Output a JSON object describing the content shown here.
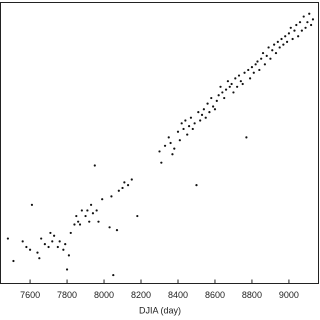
{
  "chart_data": {
    "type": "scatter",
    "xlabel": "DJIA (day)",
    "color": "#111111",
    "xlim": [
      7440,
      9160
    ],
    "ylim": [
      0,
      100
    ],
    "xticks": [
      7600,
      7800,
      8000,
      8200,
      8400,
      8600,
      8800,
      9000
    ],
    "x": [
      7480,
      7510,
      7560,
      7580,
      7600,
      7610,
      7640,
      7650,
      7660,
      7680,
      7700,
      7710,
      7720,
      7730,
      7750,
      7760,
      7780,
      7790,
      7800,
      7810,
      7820,
      7840,
      7850,
      7860,
      7870,
      7880,
      7900,
      7910,
      7920,
      7930,
      7940,
      7950,
      7960,
      7970,
      7990,
      8030,
      8040,
      8050,
      8070,
      8080,
      8100,
      8110,
      8130,
      8150,
      8180,
      8300,
      8310,
      8330,
      8350,
      8360,
      8370,
      8380,
      8400,
      8410,
      8420,
      8430,
      8440,
      8450,
      8460,
      8470,
      8480,
      8490,
      8500,
      8510,
      8520,
      8530,
      8540,
      8550,
      8560,
      8570,
      8580,
      8590,
      8600,
      8610,
      8620,
      8630,
      8640,
      8650,
      8660,
      8670,
      8680,
      8690,
      8700,
      8710,
      8720,
      8730,
      8740,
      8750,
      8760,
      8770,
      8780,
      8790,
      8800,
      8810,
      8820,
      8830,
      8840,
      8850,
      8860,
      8870,
      8880,
      8890,
      8900,
      8910,
      8920,
      8930,
      8940,
      8950,
      8960,
      8970,
      8980,
      8990,
      9000,
      9010,
      9020,
      9030,
      9040,
      9050,
      9060,
      9070,
      9080,
      9090,
      9100,
      9110,
      9120,
      9130
    ],
    "values": [
      16,
      8,
      15,
      13,
      12,
      28,
      11,
      9,
      16,
      14,
      13,
      18,
      15,
      17,
      13,
      15,
      12,
      14,
      5,
      10,
      18,
      21,
      24,
      22,
      21,
      26,
      24,
      26,
      22,
      28,
      25,
      42,
      26,
      22,
      30,
      20,
      31,
      3,
      19,
      33,
      34,
      36,
      35,
      37,
      24,
      47,
      43,
      49,
      52,
      50,
      46,
      48,
      54,
      51,
      57,
      55,
      58,
      53,
      56,
      59,
      55,
      57,
      35,
      61,
      58,
      60,
      62,
      59,
      64,
      61,
      66,
      63,
      62,
      65,
      67,
      70,
      68,
      66,
      69,
      72,
      70,
      71,
      68,
      73,
      70,
      74,
      72,
      71,
      75,
      52,
      76,
      73,
      77,
      75,
      78,
      79,
      76,
      80,
      82,
      78,
      81,
      84,
      80,
      83,
      85,
      82,
      86,
      84,
      87,
      85,
      88,
      86,
      89,
      91,
      87,
      90,
      92,
      88,
      93,
      90,
      95,
      91,
      93,
      96,
      92,
      94
    ]
  }
}
